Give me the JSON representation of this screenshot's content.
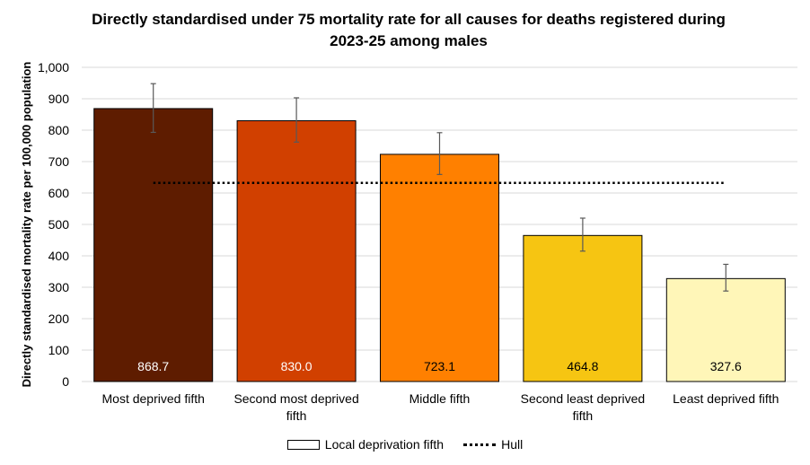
{
  "chart_data": {
    "type": "bar",
    "title_line1": "Directly standardised under 75 mortality rate for all causes for deaths registered during",
    "title_line2": "2023-25 among males",
    "ylabel": "Directly standardised mortality rate per 100,000 population",
    "xlabel": "",
    "ylim": [
      0,
      1000
    ],
    "yticks": [
      0,
      100,
      200,
      300,
      400,
      500,
      600,
      700,
      800,
      900,
      1000
    ],
    "ytick_labels": [
      "0",
      "100",
      "200",
      "300",
      "400",
      "500",
      "600",
      "700",
      "800",
      "900",
      "1,000"
    ],
    "grid": true,
    "categories": [
      [
        "Most deprived fifth"
      ],
      [
        "Second most deprived",
        "fifth"
      ],
      [
        "Middle fifth"
      ],
      [
        "Second least deprived",
        "fifth"
      ],
      [
        "Least deprived fifth"
      ]
    ],
    "series": [
      {
        "name": "Local deprivation fifth",
        "values": [
          868.7,
          830.0,
          723.1,
          464.8,
          327.6
        ],
        "value_labels": [
          "868.7",
          "830.0",
          "723.1",
          "464.8",
          "327.6"
        ],
        "error_low": [
          793,
          762,
          659,
          415,
          288
        ],
        "error_high": [
          948,
          903,
          792,
          520,
          373
        ],
        "colors": [
          "#5e1c00",
          "#d14000",
          "#ff8000",
          "#f6c512",
          "#fff6b8"
        ],
        "label_colors": [
          "#ffffff",
          "#ffffff",
          "#000000",
          "#000000",
          "#000000"
        ]
      }
    ],
    "reference_line": {
      "name": "Hull",
      "value": 632
    },
    "legend": {
      "position": "bottom",
      "bar_label": "Local deprivation fifth",
      "line_label": "Hull"
    }
  }
}
